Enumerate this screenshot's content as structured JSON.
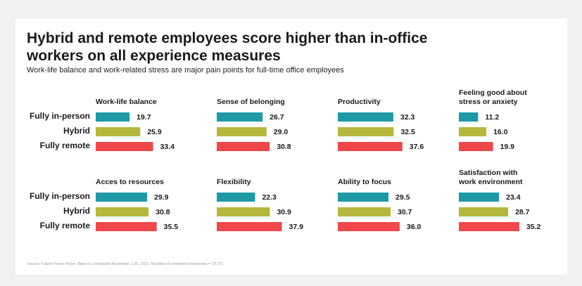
{
  "title": "Hybrid and remote employees score higher than in-office workers on all experience measures",
  "subtitle": "Work-life balance and work-related stress are major pain points for full-time office employees",
  "source": "Source: Future Forum Pulse, Wave 5, conducted November 1-30, 2021. Number of completed responses = 10,737.",
  "colors": {
    "fully_in_person": "#1e9aa6",
    "hybrid": "#b5b83d",
    "fully_remote": "#f0474b"
  },
  "chart_data": {
    "type": "bar",
    "orientation": "horizontal",
    "categories": [
      "Fully in-person",
      "Hybrid",
      "Fully remote"
    ],
    "panels": [
      {
        "title": [
          "Work-life balance"
        ],
        "values": [
          19.7,
          25.9,
          33.4
        ]
      },
      {
        "title": [
          "Sense of belonging"
        ],
        "values": [
          26.7,
          29.0,
          30.8
        ]
      },
      {
        "title": [
          "Productivity"
        ],
        "values": [
          32.3,
          32.5,
          37.6
        ]
      },
      {
        "title": [
          "Feeling good about",
          "stress or anxiety"
        ],
        "values": [
          11.2,
          16.0,
          19.9
        ]
      },
      {
        "title": [
          "Acces to resources"
        ],
        "values": [
          29.9,
          30.8,
          35.5
        ]
      },
      {
        "title": [
          "Flexibility"
        ],
        "values": [
          22.3,
          30.9,
          37.9
        ]
      },
      {
        "title": [
          "Ability to focus"
        ],
        "values": [
          29.5,
          30.7,
          36.0
        ]
      },
      {
        "title": [
          "Satisfaction with",
          "work environment"
        ],
        "values": [
          23.4,
          28.7,
          35.2
        ]
      }
    ],
    "xlim": [
      0,
      40
    ]
  }
}
